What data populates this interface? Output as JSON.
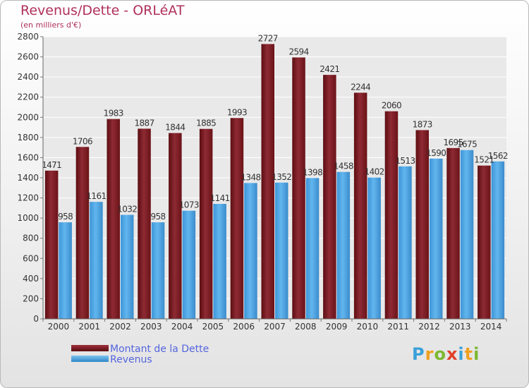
{
  "header": {
    "title": "Revenus/Dette - ORLéAT",
    "subtitle": "(en milliers d'€)"
  },
  "chart_data": {
    "type": "bar",
    "categories": [
      "2000",
      "2001",
      "2002",
      "2003",
      "2004",
      "2005",
      "2006",
      "2007",
      "2008",
      "2009",
      "2010",
      "2011",
      "2012",
      "2013",
      "2014"
    ],
    "series": [
      {
        "name": "Montant de la Dette",
        "color": "#7a1a1f",
        "values": [
          1471,
          1706,
          1983,
          1887,
          1844,
          1885,
          1993,
          2727,
          2594,
          2421,
          2244,
          2060,
          1873,
          1695,
          1521
        ]
      },
      {
        "name": "Revenus",
        "color": "#4aa3e3",
        "values": [
          958,
          1161,
          1032,
          958,
          1073,
          1141,
          1348,
          1352,
          1398,
          1458,
          1402,
          1513,
          1590,
          1675,
          1562
        ]
      }
    ],
    "data_labels": [
      [
        "1471",
        "1706",
        "1983",
        "1887",
        "1844",
        "1885",
        "1993",
        "2727",
        "2594",
        "2421",
        "2244",
        "2060",
        "1873",
        "1695",
        "1521"
      ],
      [
        "958",
        "1161",
        "1032",
        "958",
        "1073",
        "1141",
        "1348",
        "1352",
        "1398",
        "1458",
        "1402",
        "1513",
        "1590",
        "1675",
        "1562"
      ]
    ],
    "ylim": [
      0,
      2800
    ],
    "yticks": [
      "0",
      "200",
      "400",
      "600",
      "800",
      "1000",
      "1200",
      "1400",
      "1600",
      "1800",
      "2000",
      "2200",
      "2400",
      "2600",
      "2800"
    ],
    "grid": true,
    "legend_position": "bottom-left"
  },
  "legend": {
    "debt_label": "Montant de la Dette",
    "revenue_label": "Revenus"
  },
  "brand": {
    "letters": [
      "P",
      "r",
      "o",
      "x",
      "i",
      "t",
      "i"
    ],
    "colors": [
      "#3aa0d8",
      "#f0a020",
      "#7cb82f",
      "#e0402a",
      "#3aa0d8",
      "#f0a020",
      "#7cb82f"
    ]
  }
}
